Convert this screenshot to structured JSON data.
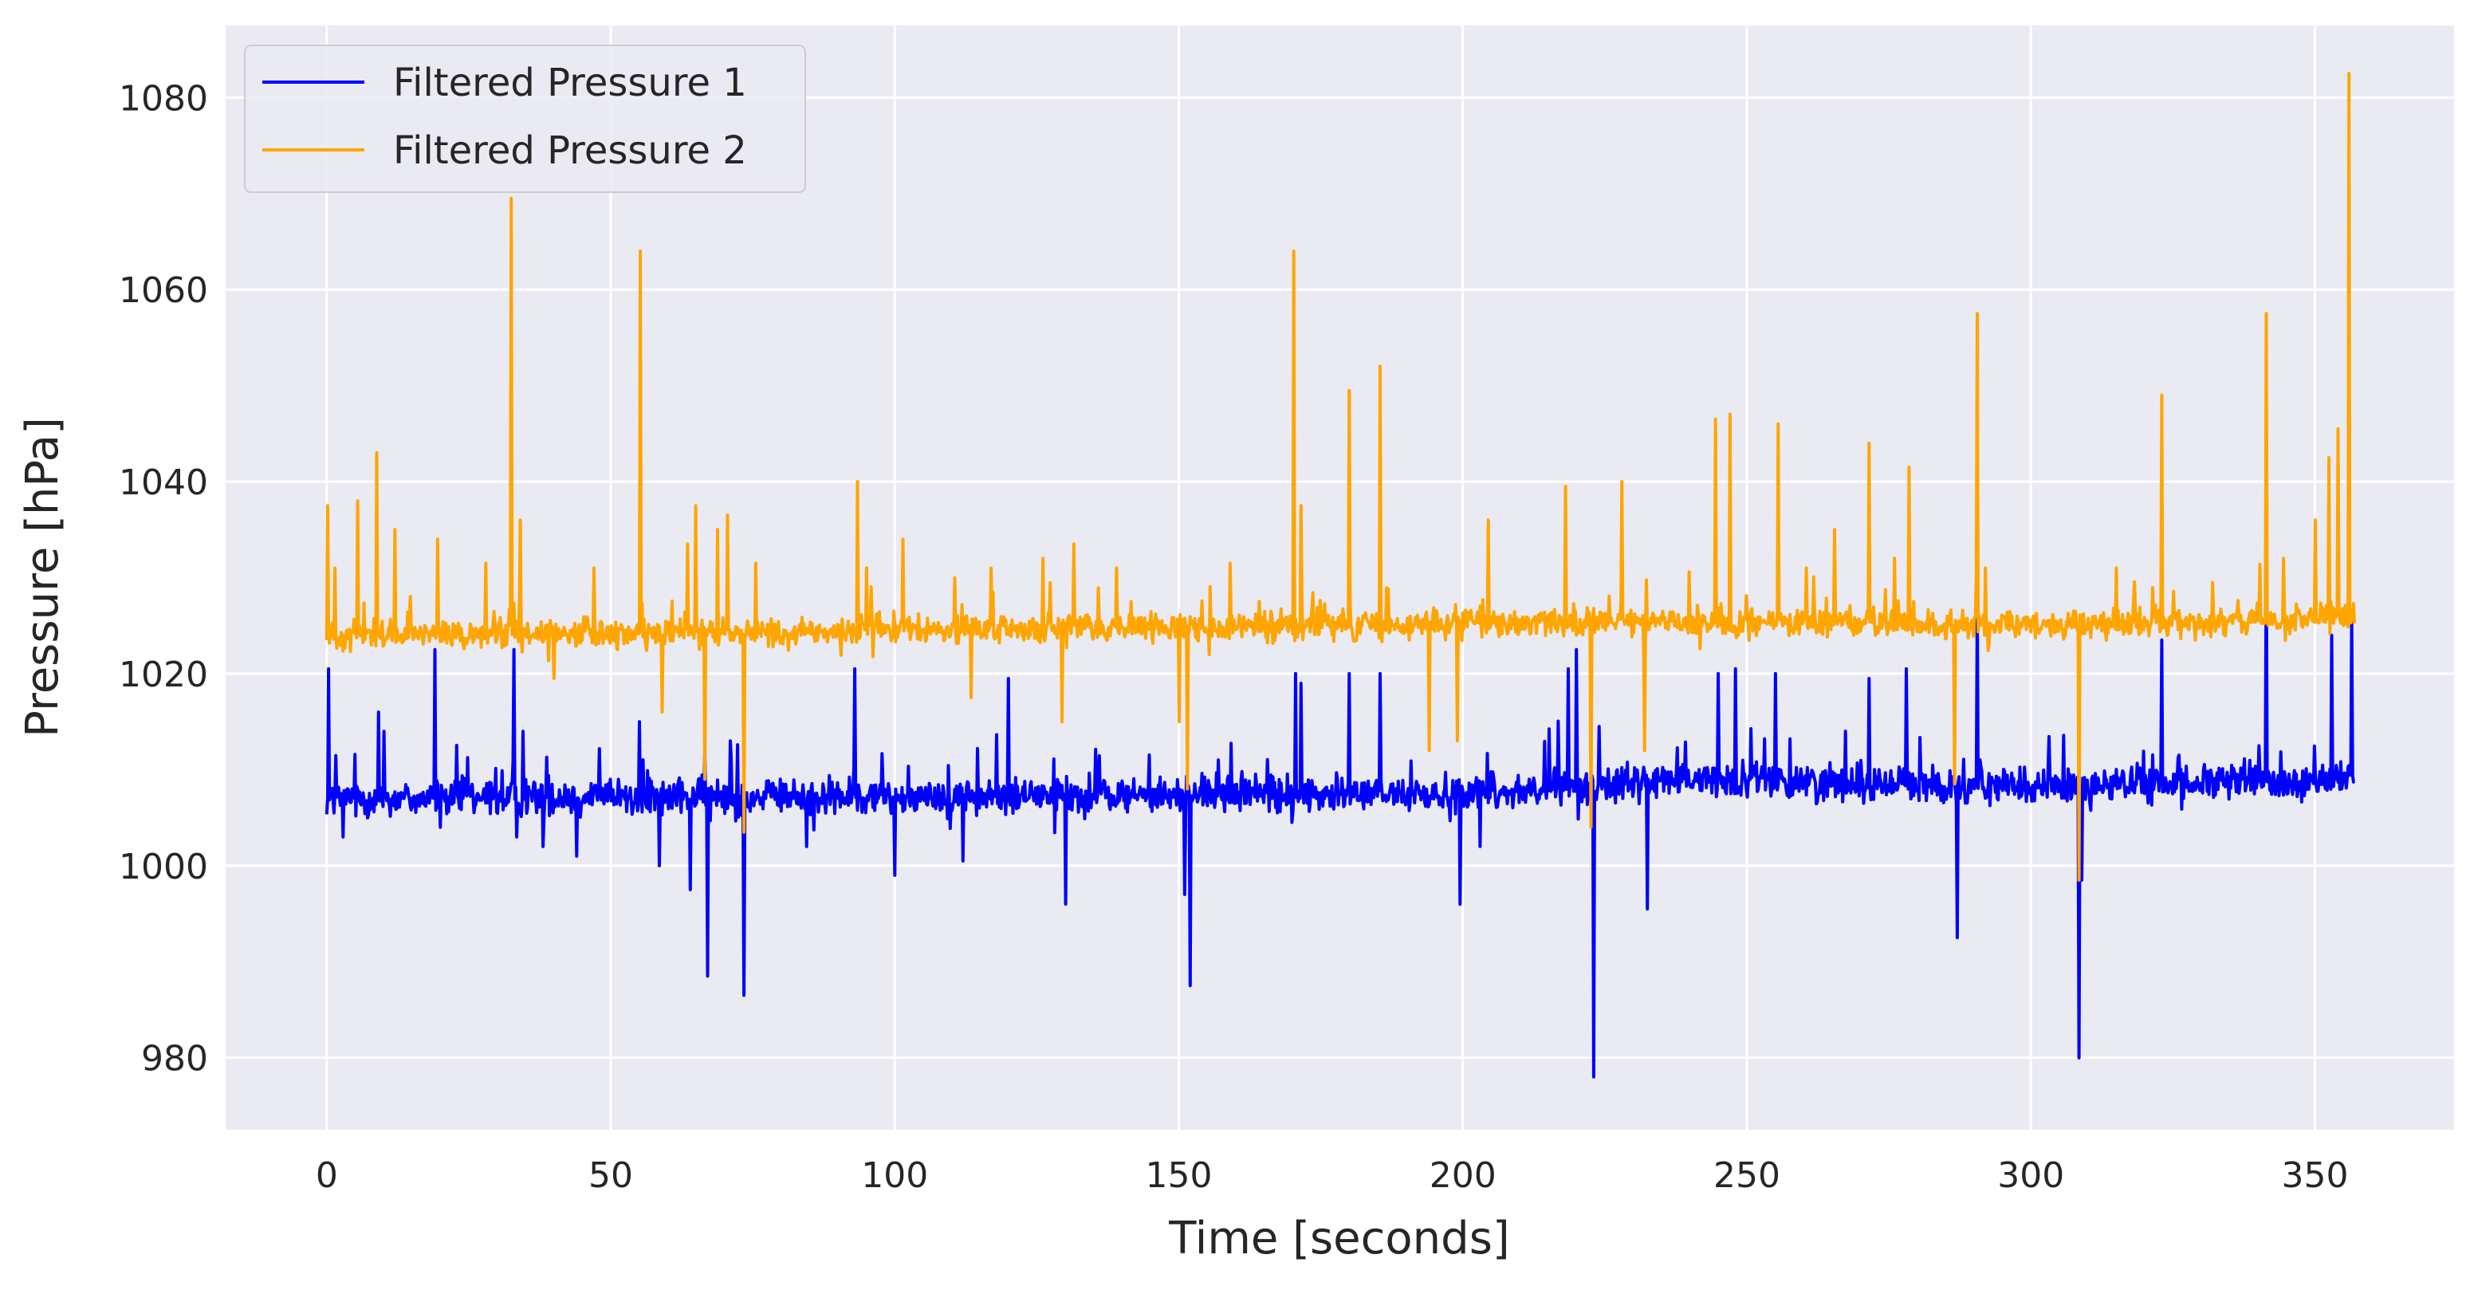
{
  "chart_data": {
    "type": "line",
    "title": "",
    "xlabel": "Time [seconds]",
    "ylabel": "Pressure [hPa]",
    "xlim": [
      -17.8,
      374.5
    ],
    "ylim": [
      972.5,
      1087.5
    ],
    "xticks": [
      0,
      50,
      100,
      150,
      200,
      250,
      300,
      350
    ],
    "yticks": [
      980,
      1000,
      1020,
      1040,
      1060,
      1080
    ],
    "grid": true,
    "background": "#eaeaf2",
    "legend": {
      "placement": "top-left"
    },
    "series": [
      {
        "name": "Filtered Pressure 1",
        "color": "#0000ff",
        "baseline": [
          [
            0,
            1007
          ],
          [
            100,
            1007.2
          ],
          [
            200,
            1007.5
          ],
          [
            240,
            1009
          ],
          [
            300,
            1008.2
          ],
          [
            357,
            1009
          ]
        ],
        "noise": 1.8,
        "spikes": [
          [
            0.3,
            1020.5
          ],
          [
            1.2,
            1005.5
          ],
          [
            2.8,
            1003
          ],
          [
            9.2,
            1016
          ],
          [
            10,
            1014
          ],
          [
            19,
            1022.5
          ],
          [
            20,
            1004
          ],
          [
            33,
            1022.5
          ],
          [
            33.5,
            1003
          ],
          [
            34.5,
            1014
          ],
          [
            38,
            1002
          ],
          [
            44,
            1001
          ],
          [
            55,
            1015
          ],
          [
            58.5,
            1000
          ],
          [
            64,
            997.5
          ],
          [
            65.5,
            1009
          ],
          [
            67,
            988.5
          ],
          [
            71,
            1013
          ],
          [
            73.5,
            986.5
          ],
          [
            84.5,
            1002
          ],
          [
            93,
            1020.5
          ],
          [
            100,
            999
          ],
          [
            112,
            1000.5
          ],
          [
            120,
            1019.5
          ],
          [
            130,
            996
          ],
          [
            151,
            997
          ],
          [
            152,
            987.5
          ],
          [
            157,
            1011
          ],
          [
            170.5,
            1020
          ],
          [
            171.5,
            1019
          ],
          [
            180,
            1020
          ],
          [
            185.5,
            1020
          ],
          [
            199.5,
            996
          ],
          [
            203,
            1002
          ],
          [
            218.5,
            1020.5
          ],
          [
            220,
            1022.5
          ],
          [
            223,
            978
          ],
          [
            224,
            1014.5
          ],
          [
            232.5,
            995.5
          ],
          [
            245,
            1020
          ],
          [
            248,
            1020.5
          ],
          [
            255,
            1020
          ],
          [
            271.5,
            1019.5
          ],
          [
            278,
            1020.5
          ],
          [
            287,
            992.5
          ],
          [
            290.5,
            1027
          ],
          [
            308.5,
            980
          ],
          [
            309,
            998.5
          ],
          [
            323,
            1023.5
          ],
          [
            341.5,
            1032.5
          ],
          [
            353,
            1024
          ],
          [
            356.5,
            1026
          ]
        ]
      },
      {
        "name": "Filtered Pressure 2",
        "color": "#ffa500",
        "baseline": [
          [
            0,
            1024
          ],
          [
            100,
            1024.5
          ],
          [
            200,
            1025.2
          ],
          [
            240,
            1025.5
          ],
          [
            300,
            1025
          ],
          [
            357,
            1026
          ]
        ],
        "noise": 1.4,
        "spikes": [
          [
            0.2,
            1037.5
          ],
          [
            1.5,
            1031
          ],
          [
            5.5,
            1038
          ],
          [
            8.8,
            1043
          ],
          [
            12,
            1035
          ],
          [
            19.5,
            1034
          ],
          [
            28,
            1031.5
          ],
          [
            32.5,
            1069.5
          ],
          [
            34,
            1036
          ],
          [
            40,
            1019.5
          ],
          [
            47,
            1031
          ],
          [
            55.2,
            1064
          ],
          [
            59,
            1016
          ],
          [
            63.5,
            1033.5
          ],
          [
            65,
            1037.5
          ],
          [
            66.5,
            1009
          ],
          [
            68.8,
            1035
          ],
          [
            70.5,
            1036.5
          ],
          [
            73.5,
            1003.5
          ],
          [
            75.5,
            1031.5
          ],
          [
            93.5,
            1040
          ],
          [
            95,
            1031
          ],
          [
            101.5,
            1034
          ],
          [
            113.5,
            1017.5
          ],
          [
            117,
            1031
          ],
          [
            126,
            1032
          ],
          [
            129.5,
            1015
          ],
          [
            131.5,
            1033.5
          ],
          [
            139,
            1031
          ],
          [
            150,
            1015
          ],
          [
            151.5,
            1008
          ],
          [
            159,
            1031.5
          ],
          [
            170.2,
            1064
          ],
          [
            171.5,
            1037.5
          ],
          [
            180,
            1049.5
          ],
          [
            185.5,
            1052
          ],
          [
            194,
            1012
          ],
          [
            199,
            1013
          ],
          [
            204.5,
            1036
          ],
          [
            218,
            1039.5
          ],
          [
            222.5,
            1004
          ],
          [
            228,
            1040
          ],
          [
            232,
            1012
          ],
          [
            244.5,
            1046.5
          ],
          [
            247,
            1047
          ],
          [
            255.5,
            1046
          ],
          [
            260.5,
            1031
          ],
          [
            265.5,
            1035
          ],
          [
            271.5,
            1044
          ],
          [
            276,
            1032
          ],
          [
            278.5,
            1041.5
          ],
          [
            286.5,
            1008.5
          ],
          [
            290.5,
            1057.5
          ],
          [
            292,
            1031
          ],
          [
            308.5,
            998.5
          ],
          [
            315,
            1031
          ],
          [
            323,
            1049
          ],
          [
            332,
            1029.5
          ],
          [
            341.5,
            1057.5
          ],
          [
            344.5,
            1032
          ],
          [
            350,
            1036
          ],
          [
            352.5,
            1042.5
          ],
          [
            354,
            1045.5
          ],
          [
            356,
            1082.5
          ]
        ]
      }
    ]
  }
}
